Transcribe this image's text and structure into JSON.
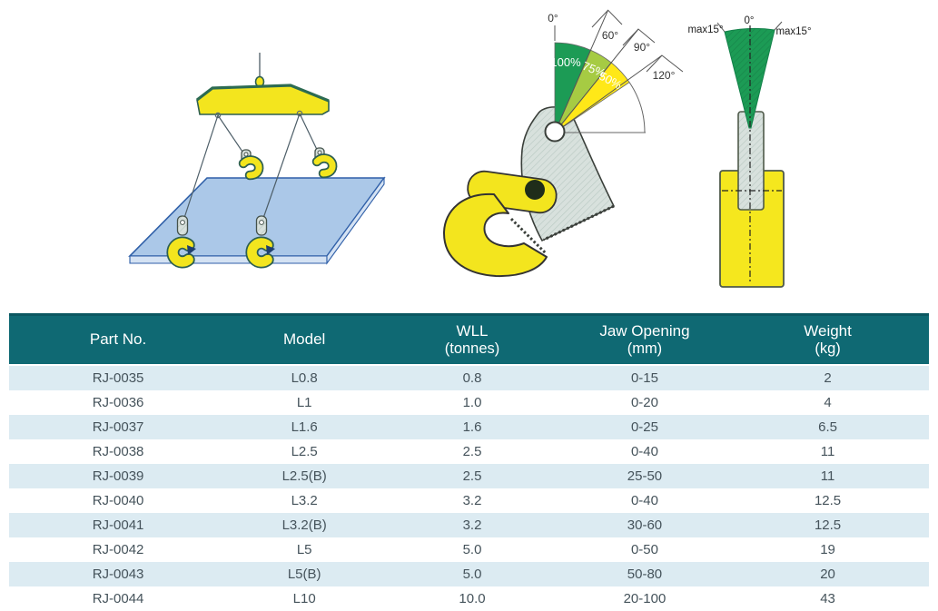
{
  "colors": {
    "header_bg": "#0f6973",
    "header_top": "#0b5761",
    "header_text": "#ffffff",
    "row_alt": "#dcebf2",
    "row_text": "#45535b",
    "accent_yellow": "#f3e51e",
    "fan_green": "#1c9b55",
    "fan_light_green": "#a6cb43",
    "fan_yellow": "#ffe818",
    "plate_blue": "#abc8e8",
    "plate_edge": "#2f5fa8",
    "steel_grey": "#d8e1dd"
  },
  "diagrams": {
    "load_angle_chart": {
      "angle_labels": {
        "a0": "0°",
        "a60": "60°",
        "a90": "90°",
        "a120": "120°"
      },
      "capacity_labels": {
        "p100": "100%",
        "p75": "75%",
        "p50": "50%"
      }
    },
    "tilt_diagram": {
      "labels": {
        "left": "max15°",
        "center": "0°",
        "right": "max15°"
      }
    }
  },
  "table": {
    "columns": [
      {
        "title": "Part No.",
        "subtitle": ""
      },
      {
        "title": "Model",
        "subtitle": ""
      },
      {
        "title": "WLL",
        "subtitle": "(tonnes)"
      },
      {
        "title": "Jaw Opening",
        "subtitle": "(mm)"
      },
      {
        "title": "Weight",
        "subtitle": "(kg)"
      }
    ],
    "column_keys": [
      "part-no",
      "model",
      "wll",
      "jaw-opening",
      "weight"
    ],
    "rows": [
      [
        "RJ-0035",
        "L0.8",
        "0.8",
        "0-15",
        "2"
      ],
      [
        "RJ-0036",
        "L1",
        "1.0",
        "0-20",
        "4"
      ],
      [
        "RJ-0037",
        "L1.6",
        "1.6",
        "0-25",
        "6.5"
      ],
      [
        "RJ-0038",
        "L2.5",
        "2.5",
        "0-40",
        "11"
      ],
      [
        "RJ-0039",
        "L2.5(B)",
        "2.5",
        "25-50",
        "11"
      ],
      [
        "RJ-0040",
        "L3.2",
        "3.2",
        "0-40",
        "12.5"
      ],
      [
        "RJ-0041",
        "L3.2(B)",
        "3.2",
        "30-60",
        "12.5"
      ],
      [
        "RJ-0042",
        "L5",
        "5.0",
        "0-50",
        "19"
      ],
      [
        "RJ-0043",
        "L5(B)",
        "5.0",
        "50-80",
        "20"
      ],
      [
        "RJ-0044",
        "L10",
        "10.0",
        "20-100",
        "43"
      ]
    ]
  }
}
